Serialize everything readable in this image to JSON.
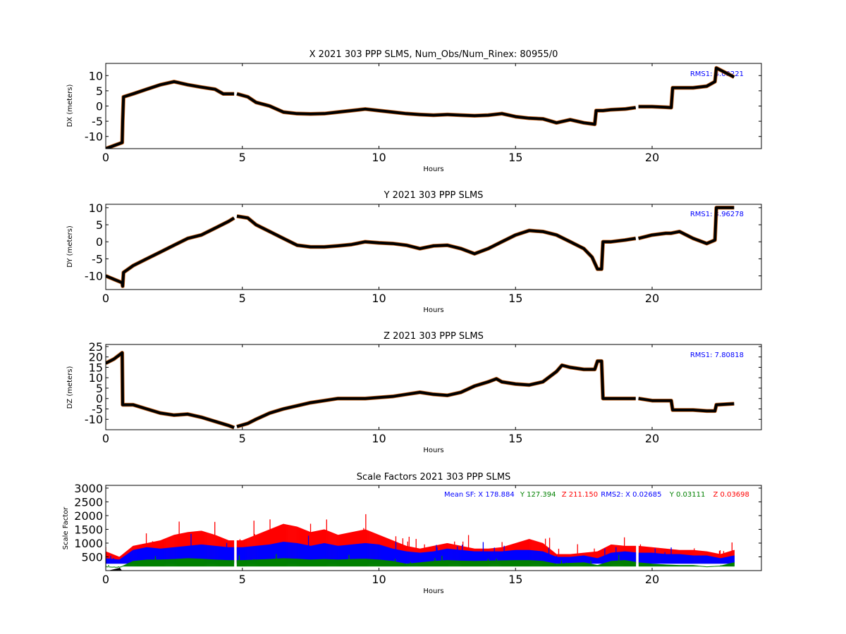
{
  "colors": {
    "trace_main": "#000000",
    "trace_edge": "#d2691e",
    "annotation": "#0000ff",
    "sf_x": "#0000ff",
    "sf_y": "#008000",
    "sf_z": "#ff0000"
  },
  "chart_data": [
    {
      "type": "scatter",
      "title": "X 2021 303 PPP  SLMS, Num_Obs/Num_Rinex: 80955/0",
      "xlabel": "Hours",
      "ylabel": "DX (meters)",
      "xlim": [
        0,
        24
      ],
      "ylim": [
        -14,
        14
      ],
      "xticks": [
        0,
        5,
        10,
        15,
        20
      ],
      "yticks": [
        -10,
        -5,
        0,
        5,
        10
      ],
      "annotation": "RMS1:  4.09221",
      "gaps": [
        [
          4.7,
          4.8
        ],
        [
          19.4,
          19.5
        ]
      ],
      "series": [
        {
          "x": [
            0,
            0.3,
            0.6,
            0.62,
            0.65,
            1.0,
            1.5,
            2.0,
            2.5,
            3.0,
            3.5,
            4.0,
            4.3,
            4.7,
            4.8,
            5.2,
            5.5,
            6.0,
            6.5,
            7.0,
            7.5,
            8.0,
            8.5,
            9.0,
            9.5,
            10.0,
            10.5,
            11.0,
            11.5,
            12.0,
            12.5,
            13.0,
            13.5,
            14.0,
            14.5,
            15.0,
            15.5,
            16.0,
            16.5,
            17.0,
            17.5,
            17.9,
            17.95,
            18.0,
            18.2,
            18.5,
            19.0,
            19.4,
            19.5,
            20.0,
            20.5,
            20.7,
            20.75,
            21.0,
            21.5,
            22.0,
            22.3,
            22.35,
            23.0
          ],
          "y": [
            -14,
            -13,
            -12,
            -5,
            3,
            4,
            5.5,
            7,
            8,
            7,
            6.2,
            5.5,
            4,
            4,
            4,
            3,
            1.2,
            0,
            -2,
            -2.5,
            -2.6,
            -2.5,
            -2,
            -1.5,
            -1,
            -1.5,
            -2,
            -2.5,
            -2.8,
            -3,
            -2.8,
            -3,
            -3.2,
            -3,
            -2.5,
            -3.5,
            -4,
            -4.2,
            -5.5,
            -4.5,
            -5.5,
            -6,
            -1.5,
            -1.5,
            -1.5,
            -1.2,
            -1,
            -0.5,
            -0.2,
            -0.2,
            -0.4,
            -0.5,
            6,
            6,
            6,
            6.5,
            8,
            12.5,
            9.5
          ]
        }
      ]
    },
    {
      "type": "scatter",
      "title": "Y 2021 303 PPP  SLMS",
      "xlabel": "Hours",
      "ylabel": "DY (meters)",
      "xlim": [
        0,
        24
      ],
      "ylim": [
        -14,
        11
      ],
      "xticks": [
        0,
        5,
        10,
        15,
        20
      ],
      "yticks": [
        -10,
        -5,
        0,
        5,
        10
      ],
      "annotation": "RMS1:  3.96278",
      "gaps": [
        [
          4.7,
          4.8
        ],
        [
          19.4,
          19.5
        ]
      ],
      "series": [
        {
          "x": [
            0,
            0.3,
            0.6,
            0.62,
            0.65,
            1.0,
            1.5,
            2.0,
            2.5,
            3.0,
            3.5,
            4.0,
            4.5,
            4.7,
            4.8,
            5.2,
            5.5,
            6.0,
            6.5,
            7.0,
            7.5,
            8.0,
            8.5,
            9.0,
            9.5,
            10.0,
            10.5,
            11.0,
            11.5,
            12.0,
            12.5,
            13.0,
            13.5,
            14.0,
            14.5,
            15.0,
            15.5,
            16.0,
            16.5,
            17.0,
            17.5,
            17.8,
            18.0,
            18.15,
            18.2,
            18.5,
            19.0,
            19.4,
            19.5,
            20.0,
            20.5,
            20.7,
            21.0,
            21.5,
            22.0,
            22.3,
            22.35,
            23.0
          ],
          "y": [
            -10,
            -11,
            -12,
            -13,
            -9,
            -7,
            -5,
            -3,
            -1,
            1,
            2,
            4,
            6,
            7,
            7.5,
            7,
            5,
            3,
            1,
            -1,
            -1.5,
            -1.5,
            -1.2,
            -0.8,
            0,
            -0.3,
            -0.5,
            -1,
            -2,
            -1.2,
            -1,
            -2,
            -3.5,
            -2,
            0,
            2,
            3.3,
            3,
            2,
            0,
            -2,
            -4.5,
            -8,
            -8,
            0,
            0,
            0.5,
            1,
            1,
            2,
            2.5,
            2.5,
            3,
            1,
            -0.5,
            0.5,
            10,
            10
          ]
        }
      ]
    },
    {
      "type": "scatter",
      "title": "Z 2021 303 PPP  SLMS",
      "xlabel": "Hours",
      "ylabel": "DZ (meters)",
      "xlim": [
        0,
        24
      ],
      "ylim": [
        -15,
        26
      ],
      "xticks": [
        0,
        5,
        10,
        15,
        20
      ],
      "yticks": [
        -10,
        -5,
        0,
        5,
        10,
        15,
        20,
        25
      ],
      "annotation": "RMS1:  7.80818",
      "gaps": [
        [
          4.7,
          4.8
        ],
        [
          19.4,
          19.5
        ]
      ],
      "series": [
        {
          "x": [
            0,
            0.3,
            0.6,
            0.62,
            0.65,
            1.0,
            1.5,
            2.0,
            2.5,
            3.0,
            3.5,
            4.0,
            4.5,
            4.7,
            4.8,
            5.2,
            5.5,
            6.0,
            6.5,
            7.0,
            7.5,
            8.0,
            8.5,
            9.0,
            9.5,
            10.0,
            10.5,
            11.0,
            11.5,
            12.0,
            12.5,
            13.0,
            13.5,
            14.0,
            14.3,
            14.5,
            15.0,
            15.5,
            16.0,
            16.5,
            16.7,
            17.0,
            17.5,
            17.9,
            18.0,
            18.15,
            18.2,
            18.5,
            19.0,
            19.4,
            19.5,
            20.0,
            20.5,
            20.7,
            20.75,
            21.0,
            21.5,
            22.0,
            22.3,
            22.35,
            23.0
          ],
          "y": [
            17,
            19,
            22,
            -3,
            -3,
            -3,
            -5,
            -7,
            -8,
            -7.5,
            -9,
            -11,
            -13,
            -14,
            -13.5,
            -12,
            -10,
            -7,
            -5,
            -3.5,
            -2,
            -1,
            0,
            0,
            0,
            0.5,
            1,
            2,
            3,
            2,
            1.5,
            3,
            6,
            8,
            9.5,
            8,
            7,
            6.5,
            8,
            13,
            16,
            15,
            14,
            14,
            18,
            18,
            0,
            0,
            0,
            0,
            0,
            -1,
            -1,
            -1,
            -5.5,
            -5.5,
            -5.5,
            -6,
            -6,
            -3,
            -2.5
          ]
        }
      ]
    },
    {
      "type": "scatter",
      "title": "Scale Factors 2021 303 PPP  SLMS",
      "xlabel": "Hours",
      "ylabel": "Scale Factor",
      "xlim": [
        0,
        24
      ],
      "ylim": [
        0,
        3100
      ],
      "xticks": [
        0,
        5,
        10,
        15,
        20
      ],
      "yticks": [
        500,
        1000,
        1500,
        2000,
        2500,
        3000
      ],
      "gaps": [
        [
          4.7,
          4.8
        ],
        [
          19.4,
          19.5
        ]
      ],
      "annotation_parts": [
        {
          "text": "Mean SF: X 178.884",
          "color": "#0000ff"
        },
        {
          "text": "Y 127.394",
          "color": "#008000"
        },
        {
          "text": "Z 211.150",
          "color": "#ff0000"
        },
        {
          "text": "RMS2: X  0.02685",
          "color": "#0000ff"
        },
        {
          "text": "Y  0.03111",
          "color": "#008000"
        },
        {
          "text": "Z  0.03698",
          "color": "#ff0000"
        }
      ],
      "series": [
        {
          "name": "Z",
          "color": "#ff0000",
          "x": [
            0,
            0.5,
            1,
            1.5,
            2,
            2.5,
            3,
            3.5,
            4,
            4.5,
            5,
            5.5,
            6,
            6.5,
            7,
            7.5,
            8,
            8.5,
            9,
            9.5,
            10,
            10.5,
            11,
            11.5,
            12,
            12.5,
            13,
            13.5,
            14,
            14.5,
            15,
            15.5,
            16,
            16.5,
            17,
            17.5,
            18,
            18.5,
            19,
            19.5,
            20,
            20.5,
            21,
            21.5,
            22,
            22.5,
            23
          ],
          "y": [
            700,
            500,
            900,
            1000,
            1100,
            1300,
            1400,
            1450,
            1300,
            1100,
            1100,
            1300,
            1500,
            1700,
            1600,
            1400,
            1500,
            1300,
            1400,
            1500,
            1300,
            1100,
            900,
            800,
            900,
            1000,
            900,
            800,
            800,
            850,
            1000,
            1150,
            1000,
            600,
            600,
            650,
            700,
            950,
            900,
            900,
            850,
            800,
            750,
            750,
            700,
            600,
            750
          ]
        },
        {
          "name": "X",
          "color": "#0000ff",
          "x": [
            0,
            0.5,
            1,
            1.5,
            2,
            2.5,
            3,
            3.5,
            4,
            4.5,
            5,
            5.5,
            6,
            6.5,
            7,
            7.5,
            8,
            8.5,
            9,
            9.5,
            10,
            10.5,
            11,
            11.5,
            12,
            12.5,
            13,
            13.5,
            14,
            14.5,
            15,
            15.5,
            16,
            16.5,
            17,
            17.5,
            18,
            18.5,
            19,
            19.5,
            20,
            20.5,
            21,
            21.5,
            22,
            22.5,
            23
          ],
          "y": [
            450,
            400,
            750,
            850,
            800,
            850,
            900,
            950,
            900,
            850,
            850,
            900,
            950,
            1050,
            1000,
            900,
            1000,
            900,
            950,
            1000,
            950,
            800,
            700,
            650,
            700,
            800,
            750,
            700,
            700,
            700,
            750,
            750,
            700,
            500,
            500,
            550,
            450,
            650,
            700,
            650,
            650,
            600,
            600,
            550,
            550,
            450,
            550
          ]
        },
        {
          "name": "Y",
          "color": "#008000",
          "x": [
            0,
            0.5,
            1,
            1.5,
            2,
            2.5,
            3,
            3.5,
            4,
            4.5,
            5,
            5.5,
            6,
            6.5,
            7,
            7.5,
            8,
            8.5,
            9,
            9.5,
            10,
            10.5,
            11,
            11.5,
            12,
            12.5,
            13,
            13.5,
            14,
            14.5,
            15,
            15.5,
            16,
            16.5,
            17,
            17.5,
            18,
            18.5,
            19,
            19.5,
            20,
            20.5,
            21,
            21.5,
            22,
            22.5,
            23
          ],
          "y": [
            150,
            120,
            350,
            400,
            400,
            420,
            450,
            430,
            400,
            380,
            380,
            400,
            420,
            450,
            430,
            400,
            420,
            400,
            420,
            430,
            400,
            350,
            250,
            300,
            350,
            380,
            360,
            350,
            360,
            370,
            380,
            380,
            350,
            250,
            280,
            300,
            200,
            350,
            380,
            300,
            250,
            220,
            200,
            200,
            150,
            180,
            300
          ]
        }
      ]
    }
  ]
}
